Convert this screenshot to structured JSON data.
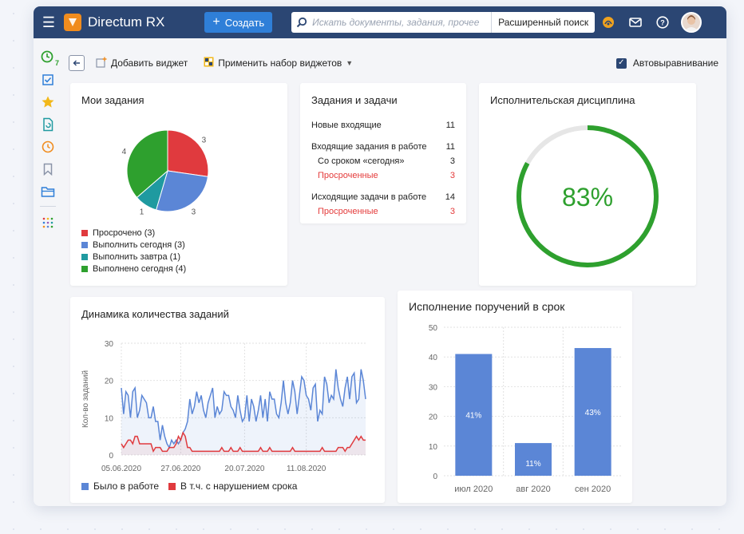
{
  "app": {
    "title": "Directum RX",
    "create_label": "Создать",
    "search_placeholder": "Искать документы, задания, прочее",
    "advanced_search": "Расширенный поиск"
  },
  "sidebar": {
    "badge": "7",
    "items": [
      "clock-icon",
      "tasks-check-icon",
      "star-icon",
      "document-sync-icon",
      "history-icon",
      "bookmark-icon",
      "folder-icon",
      "apps-grid-icon"
    ]
  },
  "toolbar": {
    "add_widget": "Добавить виджет",
    "apply_set": "Применить набор виджетов",
    "auto_align": "Автовыравнивание"
  },
  "my_tasks": {
    "title": "Мои задания",
    "legend": [
      {
        "label": "Просрочено (3)",
        "color": "#e03a3e"
      },
      {
        "label": "Выполнить сегодня (3)",
        "color": "#5b86d6"
      },
      {
        "label": "Выполнить завтра (1)",
        "color": "#1f9aa0"
      },
      {
        "label": "Выполнено сегодня (4)",
        "color": "#2ea02e"
      }
    ]
  },
  "tasks_and_jobs": {
    "title": "Задания и задачи",
    "rows": [
      {
        "label": "Новые входящие",
        "value": "11"
      },
      {
        "label": "Входящие задания в работе",
        "value": "11"
      },
      {
        "label": "Со сроком «сегодня»",
        "value": "3"
      },
      {
        "label": "Просроченные",
        "value": "3"
      },
      {
        "label": "Исходящие задачи в работе",
        "value": "14"
      },
      {
        "label": "Просроченные",
        "value": "3"
      }
    ]
  },
  "discipline": {
    "title": "Исполнительская дисциплина",
    "value_label": "83%",
    "value": 0.83,
    "color": "#2ea02e"
  },
  "dynamics": {
    "title": "Динамика количества заданий",
    "legend": [
      {
        "label": "Было в работе",
        "color": "#5b86d6"
      },
      {
        "label": "В т.ч. с нарушением срока",
        "color": "#e03a3e"
      }
    ]
  },
  "on_time": {
    "title": "Исполнение поручений в срок"
  },
  "chart_data": [
    {
      "type": "pie",
      "title": "Мои задания",
      "categories": [
        "Просрочено",
        "Выполнить сегодня",
        "Выполнить завтра",
        "Выполнено сегодня"
      ],
      "values": [
        3,
        3,
        1,
        4
      ],
      "colors": [
        "#e03a3e",
        "#5b86d6",
        "#1f9aa0",
        "#2ea02e"
      ]
    },
    {
      "type": "line",
      "title": "Динамика количества заданий",
      "ylabel": "Кол-во заданий",
      "ylim": [
        0,
        30
      ],
      "y_ticks": [
        0,
        10,
        20,
        30
      ],
      "x_ticks": [
        "05.06.2020",
        "27.06.2020",
        "20.07.2020",
        "11.08.2020"
      ],
      "series": [
        {
          "name": "Было в работе",
          "color": "#5b86d6",
          "values": [
            18,
            11,
            17,
            16,
            10,
            17,
            18,
            10,
            12,
            16,
            15,
            14,
            10,
            10,
            13,
            9,
            9,
            4,
            8,
            5,
            3,
            2,
            4,
            3,
            4,
            3,
            4,
            6,
            7,
            9,
            15,
            11,
            13,
            17,
            14,
            16,
            12,
            10,
            14,
            16,
            18,
            10,
            13,
            11,
            12,
            17,
            16,
            16,
            13,
            12,
            10,
            16,
            12,
            9,
            10,
            16,
            9,
            15,
            13,
            9,
            12,
            16,
            10,
            15,
            9,
            17,
            15,
            15,
            11,
            10,
            14,
            20,
            14,
            11,
            14,
            20,
            17,
            11,
            16,
            21,
            20,
            16,
            15,
            12,
            18,
            19,
            9,
            12,
            11,
            21,
            19,
            14,
            16,
            15,
            23,
            18,
            15,
            13,
            18,
            21,
            15,
            21,
            22,
            14,
            15,
            23,
            20,
            15
          ]
        },
        {
          "name": "В т.ч. с нарушением срока",
          "color": "#e03a3e",
          "values": [
            3,
            2,
            3,
            4,
            4,
            3,
            5,
            5,
            3,
            3,
            3,
            3,
            3,
            3,
            1,
            2,
            2,
            2,
            1,
            1,
            1,
            2,
            2,
            2,
            3,
            5,
            4,
            6,
            5,
            2,
            2,
            1,
            1,
            1,
            1,
            1,
            1,
            1,
            1,
            1,
            1,
            1,
            1,
            1,
            2,
            1,
            1,
            1,
            2,
            1,
            1,
            1,
            2,
            1,
            1,
            1,
            1,
            1,
            1,
            1,
            1,
            2,
            1,
            1,
            1,
            2,
            1,
            1,
            1,
            1,
            1,
            1,
            1,
            1,
            1,
            2,
            1,
            1,
            1,
            1,
            1,
            1,
            1,
            1,
            1,
            1,
            1,
            1,
            2,
            1,
            1,
            1,
            1,
            1,
            1,
            2,
            2,
            2,
            1,
            2,
            2,
            3,
            4,
            5,
            4,
            5,
            4,
            4
          ]
        }
      ]
    },
    {
      "type": "bar",
      "title": "Исполнение поручений в срок",
      "categories": [
        "июл 2020",
        "авг 2020",
        "сен 2020"
      ],
      "values": [
        41,
        11,
        43
      ],
      "labels": [
        "41%",
        "11%",
        "43%"
      ],
      "ylim": [
        0,
        50
      ],
      "y_ticks": [
        0,
        10,
        20,
        30,
        40,
        50
      ],
      "color": "#5b86d6"
    }
  ]
}
